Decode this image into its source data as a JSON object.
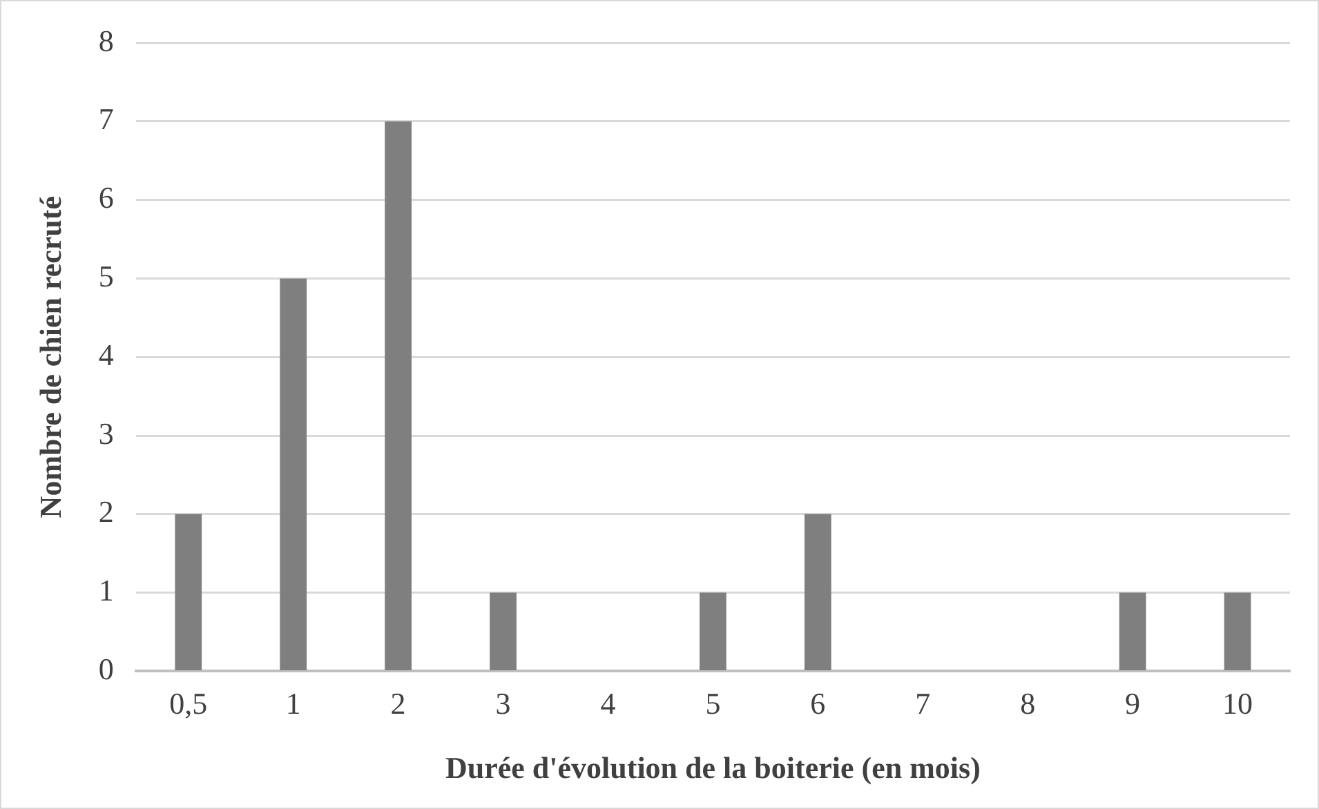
{
  "chart_data": {
    "type": "bar",
    "xlabel": "Durée d'évolution de la boiterie (en mois)",
    "ylabel": "Nombre de chien recruté",
    "categories": [
      "0,5",
      "1",
      "2",
      "3",
      "4",
      "5",
      "6",
      "7",
      "8",
      "9",
      "10"
    ],
    "values": [
      2,
      5,
      7,
      1,
      0,
      1,
      2,
      0,
      0,
      1,
      1
    ],
    "color": "#7f7f7f",
    "ylim": [
      0,
      8
    ],
    "yticks": [
      0,
      1,
      2,
      3,
      4,
      5,
      6,
      7,
      8
    ],
    "grid": "y",
    "legend": false
  }
}
